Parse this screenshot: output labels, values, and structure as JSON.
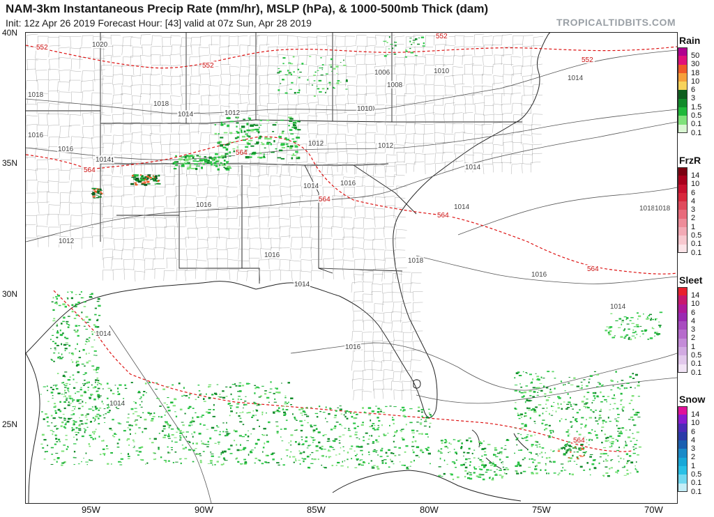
{
  "header": {
    "title": "NAM-3km Instantaneous Precip Rate (mm/hr), MSLP (hPa), & 1000-500mb Thick (dam)",
    "subtitle": "Init: 12z Apr 26 2019   Forecast Hour: [43]   valid at 07z Sun, Apr 28 2019",
    "brand": "TROPICALTIDBITS.COM"
  },
  "axes": {
    "lat_labels": [
      "40N",
      "35N",
      "30N",
      "25N"
    ],
    "lon_labels": [
      "95W",
      "90W",
      "85W",
      "80W",
      "75W",
      "70W"
    ]
  },
  "isobars": [
    "1020",
    "1018",
    "1018",
    "1016",
    "1016",
    "1014",
    "1014",
    "1012",
    "1012",
    "1012",
    "1010",
    "1010",
    "1008",
    "1006",
    "1014",
    "1014",
    "1014",
    "1016",
    "1016",
    "1016",
    "1014",
    "1018",
    "1018",
    "1016",
    "1014",
    "1014",
    "1014",
    "1012",
    "1010",
    "1014",
    "1016",
    "1012",
    "1014",
    "1018"
  ],
  "thickness_labels": [
    "552",
    "552",
    "552",
    "552",
    "564",
    "564",
    "564",
    "564",
    "564",
    "564"
  ],
  "legend": {
    "rain": {
      "title": "Rain",
      "levels": [
        "50",
        "30",
        "18",
        "10",
        "6",
        "3",
        "1.5",
        "0.5",
        "0.1"
      ],
      "colors": [
        "#b0008f",
        "#e0107a",
        "#f05a28",
        "#f6a03a",
        "#f7d35a",
        "#0d5e1e",
        "#118a2a",
        "#1fb83a",
        "#7fe27a",
        "#d9f7d2"
      ]
    },
    "frzr": {
      "title": "FrzR",
      "levels": [
        "14",
        "10",
        "6",
        "4",
        "3",
        "2",
        "1",
        "0.5",
        "0.1"
      ],
      "colors": [
        "#7a0010",
        "#a8001c",
        "#c8102e",
        "#d8283d",
        "#e04a5c",
        "#e86b7b",
        "#ee8c99",
        "#f3aab5",
        "#f8c8cf",
        "#fce4e8"
      ]
    },
    "sleet": {
      "title": "Sleet",
      "levels": [
        "14",
        "10",
        "6",
        "4",
        "3",
        "2",
        "1",
        "0.5",
        "0.1"
      ],
      "colors": [
        "#e8202e",
        "#c8186e",
        "#b01a9a",
        "#9a2ab2",
        "#a84cc0",
        "#b66ccc",
        "#c48cd8",
        "#d2aae2",
        "#e2c8ec",
        "#f2e4f6"
      ]
    },
    "snow": {
      "title": "Snow",
      "levels": [
        "14",
        "10",
        "6",
        "4",
        "3",
        "2",
        "1",
        "0.5",
        "0.1"
      ],
      "colors": [
        "#e0109a",
        "#8a1ad0",
        "#4c2ab8",
        "#2a3aa8",
        "#1a5fb0",
        "#1a8ac8",
        "#18a8d8",
        "#28c0e6",
        "#70d8f0",
        "#c4eef8"
      ]
    }
  }
}
